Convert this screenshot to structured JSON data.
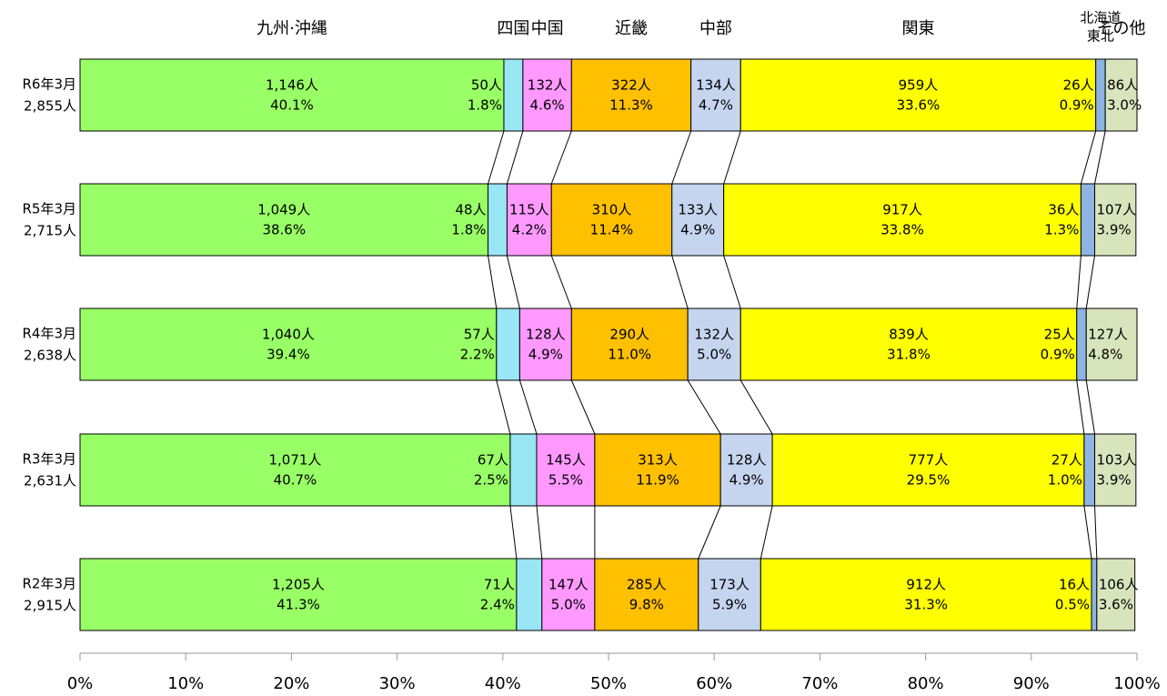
{
  "chart_data": {
    "type": "stacked-bar-100",
    "categories": [
      "R6年3月",
      "R5年3月",
      "R4年3月",
      "R3年3月",
      "R2年3月"
    ],
    "totals": [
      "2,855人",
      "2,715人",
      "2,638人",
      "2,631人",
      "2,915人"
    ],
    "xlim": [
      0,
      100
    ],
    "xticks": [
      {
        "value": 0,
        "label": "0%"
      },
      {
        "value": 10,
        "label": "10%"
      },
      {
        "value": 20,
        "label": "20%"
      },
      {
        "value": 30,
        "label": "30%"
      },
      {
        "value": 40,
        "label": "40%"
      },
      {
        "value": 50,
        "label": "50%"
      },
      {
        "value": 60,
        "label": "60%"
      },
      {
        "value": 70,
        "label": "70%"
      },
      {
        "value": 80,
        "label": "80%"
      },
      {
        "value": 90,
        "label": "90%"
      },
      {
        "value": 100,
        "label": "100%"
      }
    ],
    "series": [
      {
        "name": [
          "九州·沖縄"
        ],
        "color": "#99ff66",
        "values": [
          40.1,
          38.6,
          39.4,
          40.7,
          41.3
        ],
        "value_labels": [
          "40.1%",
          "38.6%",
          "39.4%",
          "40.7%",
          "41.3%"
        ],
        "count_labels": [
          "1,146人",
          "1,049人",
          "1,040人",
          "1,071人",
          "1,205人"
        ]
      },
      {
        "name": [
          "四国"
        ],
        "color": "#99e6f5",
        "values": [
          1.8,
          1.8,
          2.2,
          2.5,
          2.4
        ],
        "value_labels": [
          "1.8%",
          "1.8%",
          "2.2%",
          "2.5%",
          "2.4%"
        ],
        "count_labels": [
          "50人",
          "48人",
          "57人",
          "67人",
          "71人"
        ]
      },
      {
        "name": [
          "中国"
        ],
        "color": "#ff99ff",
        "values": [
          4.6,
          4.2,
          4.9,
          5.5,
          5.0
        ],
        "value_labels": [
          "4.6%",
          "4.2%",
          "4.9%",
          "5.5%",
          "5.0%"
        ],
        "count_labels": [
          "132人",
          "115人",
          "128人",
          "145人",
          "147人"
        ]
      },
      {
        "name": [
          "近畿"
        ],
        "color": "#ffc000",
        "values": [
          11.3,
          11.4,
          11.0,
          11.9,
          9.8
        ],
        "value_labels": [
          "11.3%",
          "11.4%",
          "11.0%",
          "11.9%",
          "9.8%"
        ],
        "count_labels": [
          "322人",
          "310人",
          "290人",
          "313人",
          "285人"
        ]
      },
      {
        "name": [
          "中部"
        ],
        "color": "#c5d5ef",
        "values": [
          4.7,
          4.9,
          5.0,
          4.9,
          5.9
        ],
        "value_labels": [
          "4.7%",
          "4.9%",
          "5.0%",
          "4.9%",
          "5.9%"
        ],
        "count_labels": [
          "134人",
          "133人",
          "132人",
          "128人",
          "173人"
        ]
      },
      {
        "name": [
          "関東"
        ],
        "color": "#ffff00",
        "values": [
          33.6,
          33.8,
          31.8,
          29.5,
          31.3
        ],
        "value_labels": [
          "33.6%",
          "33.8%",
          "31.8%",
          "29.5%",
          "31.3%"
        ],
        "count_labels": [
          "959人",
          "917人",
          "839人",
          "777人",
          "912人"
        ]
      },
      {
        "name": [
          "北海道",
          "東北"
        ],
        "color": "#8db4e2",
        "values": [
          0.9,
          1.3,
          0.9,
          1.0,
          0.5
        ],
        "value_labels": [
          "0.9%",
          "1.3%",
          "0.9%",
          "1.0%",
          "0.5%"
        ],
        "count_labels": [
          "26人",
          "36人",
          "25人",
          "27人",
          "16人"
        ]
      },
      {
        "name": [
          "その他"
        ],
        "color": "#d8e4bc",
        "values": [
          3.0,
          3.9,
          4.8,
          3.9,
          3.6
        ],
        "value_labels": [
          "3.0%",
          "3.9%",
          "4.8%",
          "3.9%",
          "3.6%"
        ],
        "count_labels": [
          "86人",
          "107人",
          "127人",
          "103人",
          "106人"
        ]
      }
    ]
  }
}
